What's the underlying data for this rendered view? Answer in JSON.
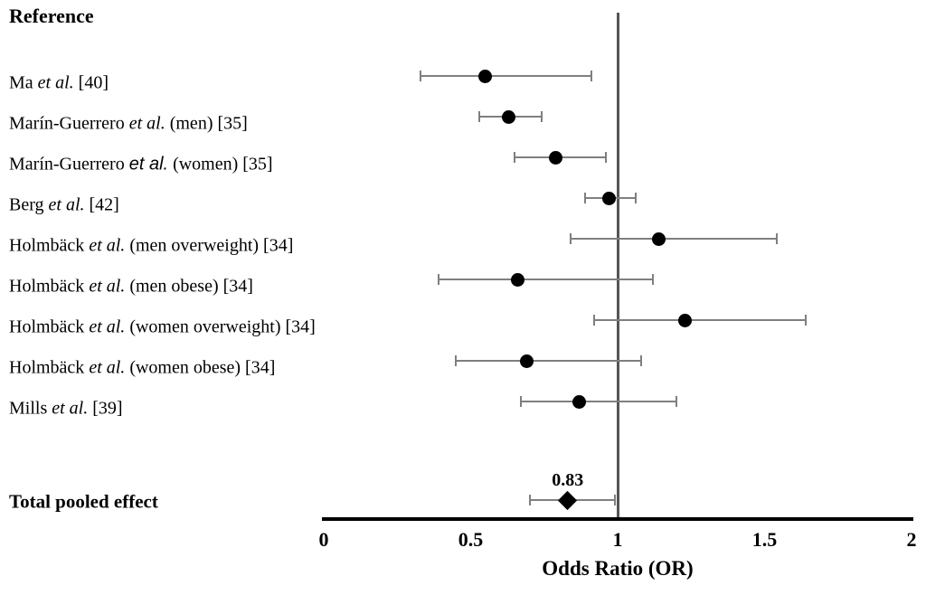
{
  "chart_data": {
    "type": "scatter",
    "subtype": "forest-plot",
    "header": "Reference",
    "xlabel": "Odds Ratio (OR)",
    "xlim": [
      0,
      2
    ],
    "xticks": [
      0,
      0.5,
      1,
      1.5,
      2
    ],
    "xtick_labels": [
      "0",
      "0.5",
      "1",
      "1.5",
      "2"
    ],
    "reference_line": 1,
    "grid": false,
    "legend": false,
    "studies": [
      {
        "label": "Ma et al. [40]",
        "or": 0.55,
        "ci_low": 0.33,
        "ci_high": 0.91,
        "et_al_style": "serif"
      },
      {
        "label": "Marín-Guerrero et al. (men) [35]",
        "or": 0.63,
        "ci_low": 0.53,
        "ci_high": 0.74,
        "et_al_style": "serif"
      },
      {
        "label": "Marín-Guerrero et al. (women) [35]",
        "or": 0.79,
        "ci_low": 0.65,
        "ci_high": 0.96,
        "et_al_style": "sans"
      },
      {
        "label": "Berg et al. [42]",
        "or": 0.97,
        "ci_low": 0.89,
        "ci_high": 1.06,
        "et_al_style": "serif"
      },
      {
        "label": "Holmbäck et al. (men overweight) [34]",
        "or": 1.14,
        "ci_low": 0.84,
        "ci_high": 1.54,
        "et_al_style": "serif"
      },
      {
        "label": "Holmbäck et al. (men obese) [34]",
        "or": 0.66,
        "ci_low": 0.39,
        "ci_high": 1.12,
        "et_al_style": "serif"
      },
      {
        "label": "Holmbäck et al. (women overweight) [34]",
        "or": 1.23,
        "ci_low": 0.92,
        "ci_high": 1.64,
        "et_al_style": "serif"
      },
      {
        "label": "Holmbäck et al. (women obese) [34]",
        "or": 0.69,
        "ci_low": 0.45,
        "ci_high": 1.08,
        "et_al_style": "serif"
      },
      {
        "label": "Mills et al. [39]",
        "or": 0.87,
        "ci_low": 0.67,
        "ci_high": 1.2,
        "et_al_style": "serif"
      }
    ],
    "pooled": {
      "label": "Total pooled effect",
      "or": 0.83,
      "or_label": "0.83",
      "ci_low": 0.7,
      "ci_high": 0.99
    },
    "colors": {
      "marker": "#000000",
      "error_bar": "#7f7f7f",
      "reference_line": "#555555",
      "axis": "#000000",
      "text": "#000000",
      "background": "#ffffff"
    }
  }
}
